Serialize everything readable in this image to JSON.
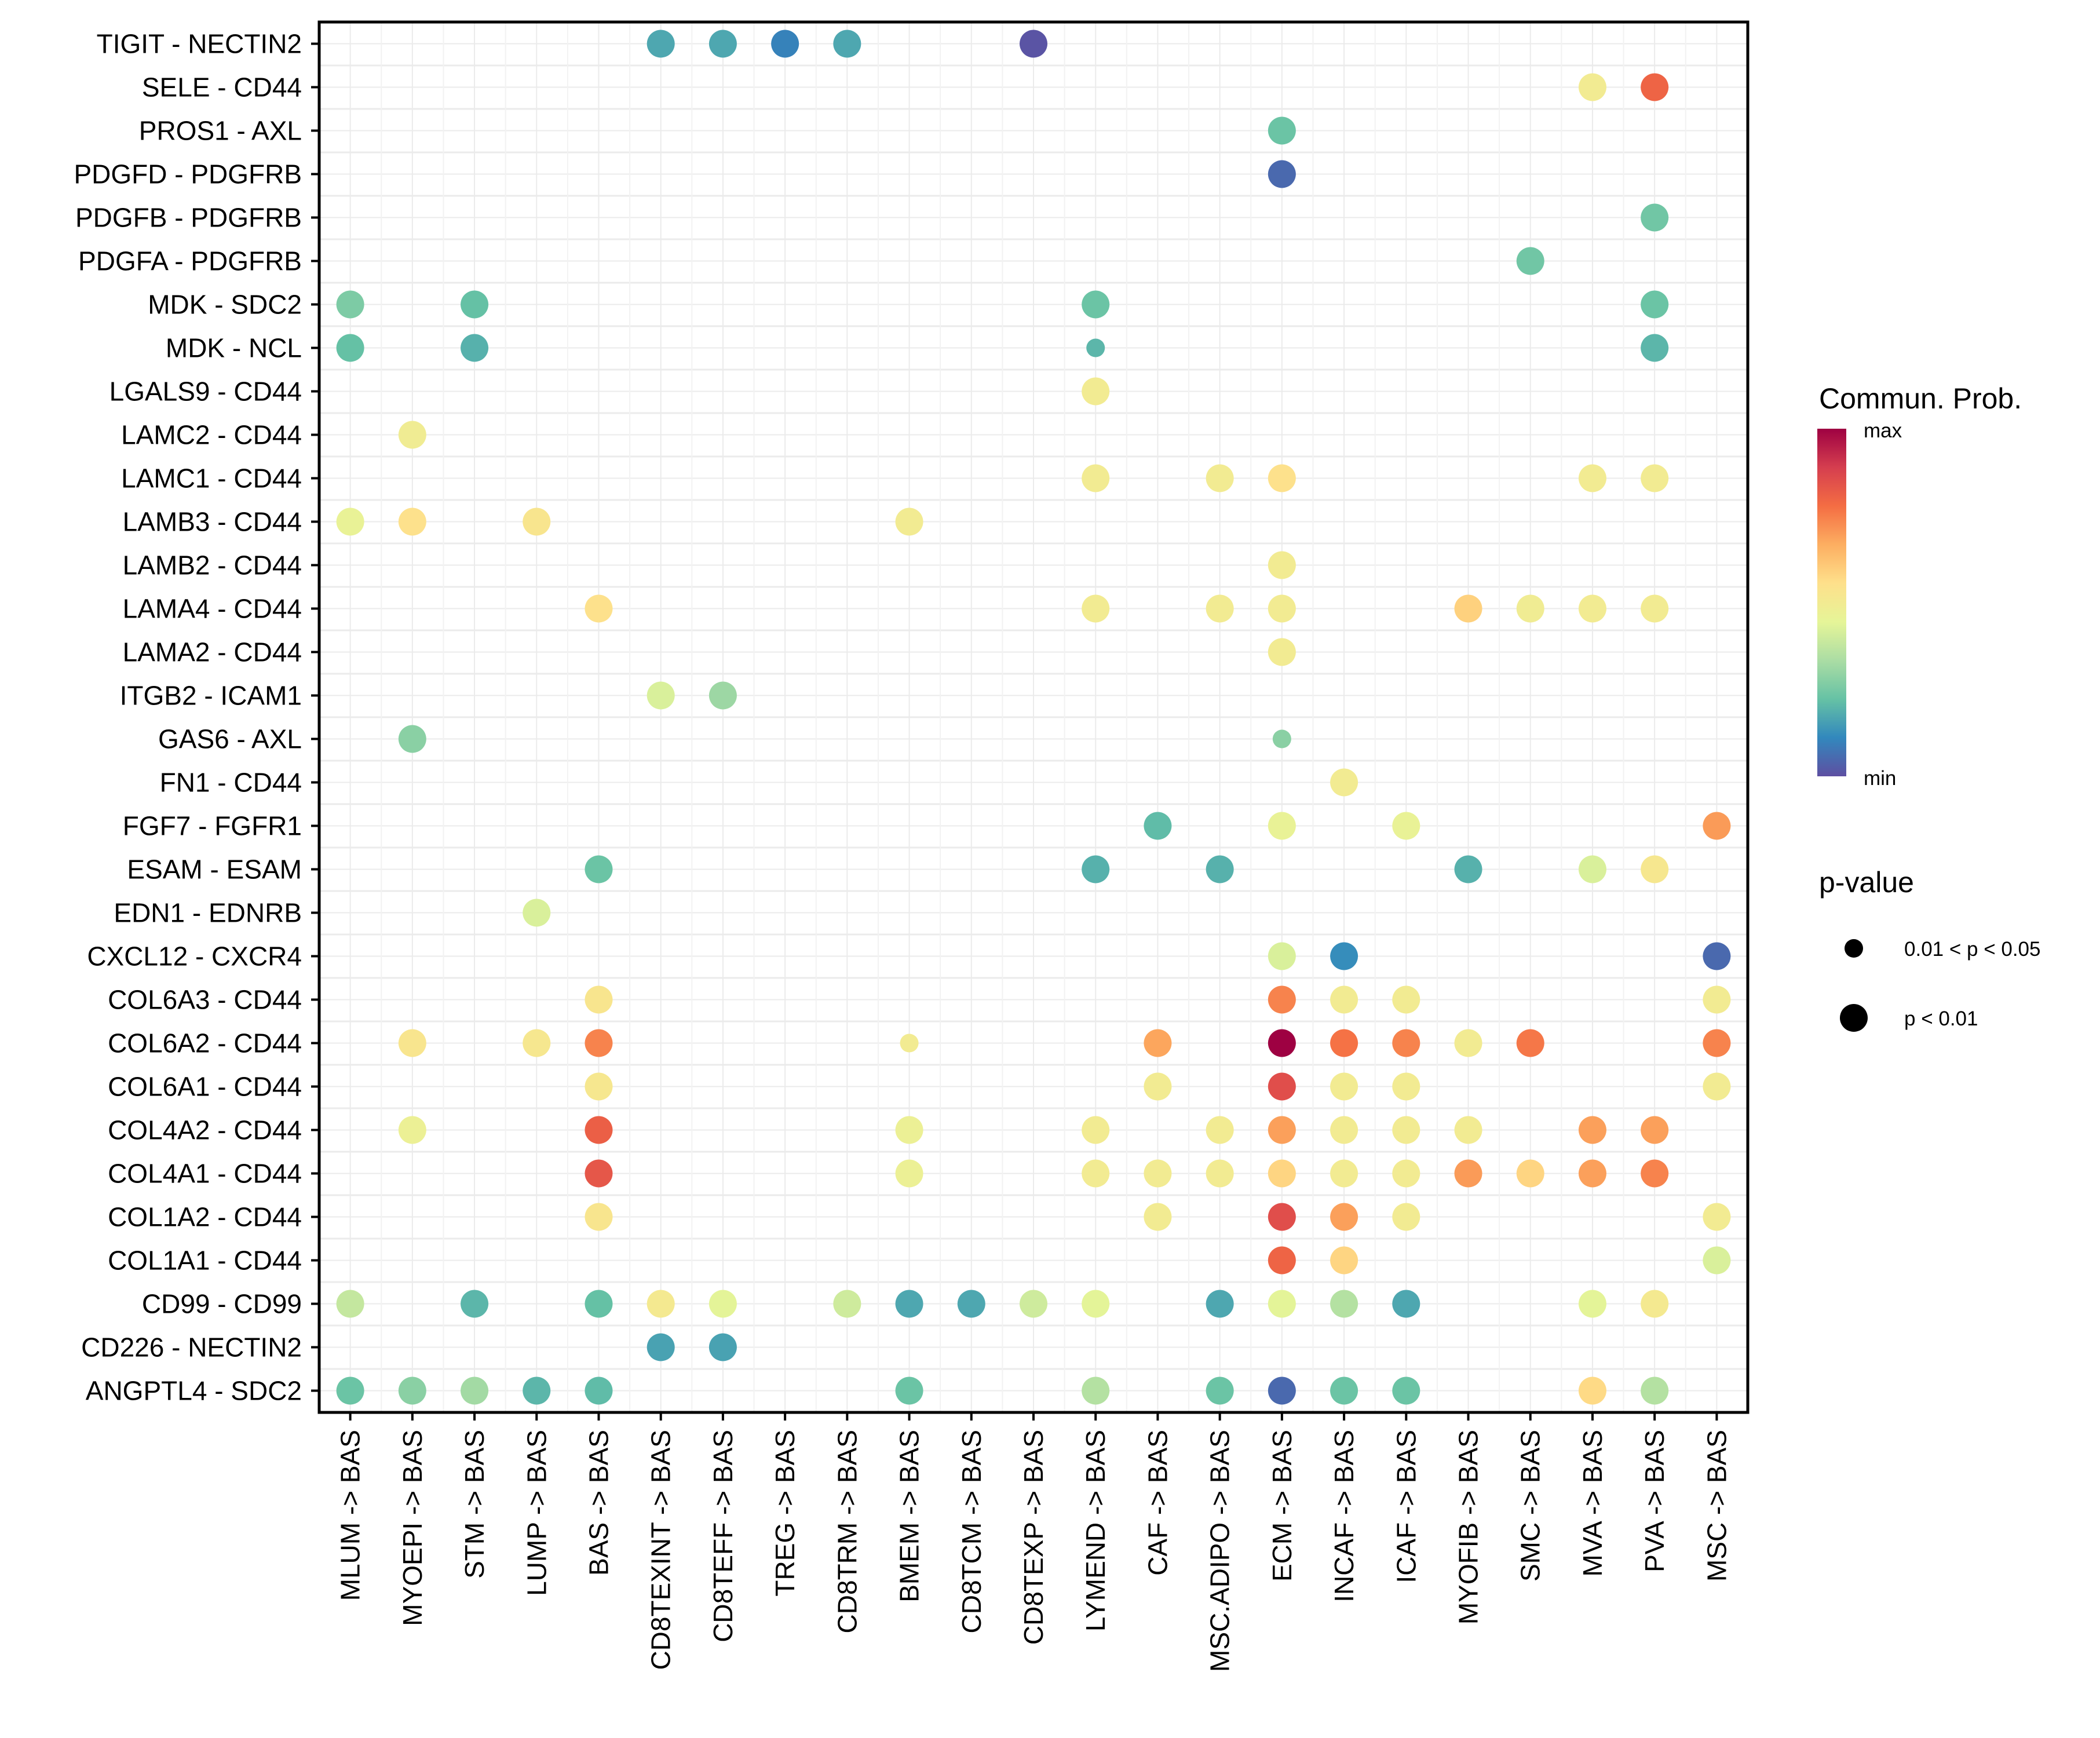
{
  "chart_data": {
    "type": "scatter",
    "subtype": "dot-matrix",
    "title": "",
    "xlabel": "",
    "ylabel": "",
    "grid": true,
    "x_categories": [
      "MLUM -> BAS",
      "MYOEPI -> BAS",
      "STM -> BAS",
      "LUMP -> BAS",
      "BAS -> BAS",
      "CD8TEXINT -> BAS",
      "CD8TEFF -> BAS",
      "TREG -> BAS",
      "CD8TRM -> BAS",
      "BMEM -> BAS",
      "CD8TCM -> BAS",
      "CD8TEXP -> BAS",
      "LYMEND -> BAS",
      "CAF -> BAS",
      "MSC.ADIPO -> BAS",
      "ECM -> BAS",
      "INCAF -> BAS",
      "ICAF -> BAS",
      "MYOFIB -> BAS",
      "SMC -> BAS",
      "MVA -> BAS",
      "PVA -> BAS",
      "MSC -> BAS"
    ],
    "y_categories_top_to_bottom": [
      "TIGIT - NECTIN2",
      "SELE - CD44",
      "PROS1 - AXL",
      "PDGFD - PDGFRB",
      "PDGFB - PDGFRB",
      "PDGFA - PDGFRB",
      "MDK - SDC2",
      "MDK - NCL",
      "LGALS9 - CD44",
      "LAMC2 - CD44",
      "LAMC1 - CD44",
      "LAMB3 - CD44",
      "LAMB2 - CD44",
      "LAMA4 - CD44",
      "LAMA2 - CD44",
      "ITGB2 - ICAM1",
      "GAS6 - AXL",
      "FN1 - CD44",
      "FGF7 - FGFR1",
      "ESAM - ESAM",
      "EDN1 - EDNRB",
      "CXCL12 - CXCR4",
      "COL6A3 - CD44",
      "COL6A2 - CD44",
      "COL6A1 - CD44",
      "COL4A2 - CD44",
      "COL4A1 - CD44",
      "COL1A2 - CD44",
      "COL1A1 - CD44",
      "CD99 - CD99",
      "CD226 - NECTIN2",
      "ANGPTL4 - SDC2"
    ],
    "value_note": "prob = communication probability normalized 0 (min) to 1 (max), estimated from Spectral color; p: 1 = p < 0.01 (large dot), 0 = 0.01 < p < 0.05 (small dot)",
    "points": [
      {
        "y": "TIGIT - NECTIN2",
        "x": "CD8TEXINT -> BAS",
        "prob": 0.17,
        "p": 1
      },
      {
        "y": "TIGIT - NECTIN2",
        "x": "CD8TEFF -> BAS",
        "prob": 0.17,
        "p": 1
      },
      {
        "y": "TIGIT - NECTIN2",
        "x": "TREG -> BAS",
        "prob": 0.1,
        "p": 1
      },
      {
        "y": "TIGIT - NECTIN2",
        "x": "CD8TRM -> BAS",
        "prob": 0.17,
        "p": 1
      },
      {
        "y": "TIGIT - NECTIN2",
        "x": "CD8TEXP -> BAS",
        "prob": 0.01,
        "p": 1
      },
      {
        "y": "SELE - CD44",
        "x": "MVA -> BAS",
        "prob": 0.5,
        "p": 1
      },
      {
        "y": "SELE - CD44",
        "x": "PVA -> BAS",
        "prob": 0.8,
        "p": 1
      },
      {
        "y": "PROS1 - AXL",
        "x": "ECM -> BAS",
        "prob": 0.23,
        "p": 1
      },
      {
        "y": "PDGFD - PDGFRB",
        "x": "ECM -> BAS",
        "prob": 0.05,
        "p": 1
      },
      {
        "y": "PDGFB - PDGFRB",
        "x": "PVA -> BAS",
        "prob": 0.24,
        "p": 1
      },
      {
        "y": "PDGFA - PDGFRB",
        "x": "SMC -> BAS",
        "prob": 0.24,
        "p": 1
      },
      {
        "y": "MDK - SDC2",
        "x": "MLUM -> BAS",
        "prob": 0.26,
        "p": 1
      },
      {
        "y": "MDK - SDC2",
        "x": "STM -> BAS",
        "prob": 0.22,
        "p": 1
      },
      {
        "y": "MDK - SDC2",
        "x": "LYMEND -> BAS",
        "prob": 0.23,
        "p": 1
      },
      {
        "y": "MDK - SDC2",
        "x": "PVA -> BAS",
        "prob": 0.23,
        "p": 1
      },
      {
        "y": "MDK - NCL",
        "x": "MLUM -> BAS",
        "prob": 0.22,
        "p": 1
      },
      {
        "y": "MDK - NCL",
        "x": "STM -> BAS",
        "prob": 0.19,
        "p": 1
      },
      {
        "y": "MDK - NCL",
        "x": "LYMEND -> BAS",
        "prob": 0.2,
        "p": 0
      },
      {
        "y": "MDK - NCL",
        "x": "PVA -> BAS",
        "prob": 0.2,
        "p": 1
      },
      {
        "y": "LGALS9 - CD44",
        "x": "LYMEND -> BAS",
        "prob": 0.5,
        "p": 1
      },
      {
        "y": "LAMC2 - CD44",
        "x": "MYOEPI -> BAS",
        "prob": 0.49,
        "p": 1
      },
      {
        "y": "LAMC1 - CD44",
        "x": "LYMEND -> BAS",
        "prob": 0.5,
        "p": 1
      },
      {
        "y": "LAMC1 - CD44",
        "x": "MSC.ADIPO -> BAS",
        "prob": 0.5,
        "p": 1
      },
      {
        "y": "LAMC1 - CD44",
        "x": "ECM -> BAS",
        "prob": 0.55,
        "p": 1
      },
      {
        "y": "LAMC1 - CD44",
        "x": "MVA -> BAS",
        "prob": 0.5,
        "p": 1
      },
      {
        "y": "LAMC1 - CD44",
        "x": "PVA -> BAS",
        "prob": 0.5,
        "p": 1
      },
      {
        "y": "LAMB3 - CD44",
        "x": "MLUM -> BAS",
        "prob": 0.46,
        "p": 1
      },
      {
        "y": "LAMB3 - CD44",
        "x": "MYOEPI -> BAS",
        "prob": 0.55,
        "p": 1
      },
      {
        "y": "LAMB3 - CD44",
        "x": "LUMP -> BAS",
        "prob": 0.53,
        "p": 1
      },
      {
        "y": "LAMB3 - CD44",
        "x": "BMEM -> BAS",
        "prob": 0.5,
        "p": 1
      },
      {
        "y": "LAMB2 - CD44",
        "x": "ECM -> BAS",
        "prob": 0.5,
        "p": 1
      },
      {
        "y": "LAMA4 - CD44",
        "x": "BAS -> BAS",
        "prob": 0.55,
        "p": 1
      },
      {
        "y": "LAMA4 - CD44",
        "x": "LYMEND -> BAS",
        "prob": 0.5,
        "p": 1
      },
      {
        "y": "LAMA4 - CD44",
        "x": "MSC.ADIPO -> BAS",
        "prob": 0.5,
        "p": 1
      },
      {
        "y": "LAMA4 - CD44",
        "x": "ECM -> BAS",
        "prob": 0.5,
        "p": 1
      },
      {
        "y": "LAMA4 - CD44",
        "x": "MYOFIB -> BAS",
        "prob": 0.59,
        "p": 1
      },
      {
        "y": "LAMA4 - CD44",
        "x": "SMC -> BAS",
        "prob": 0.49,
        "p": 1
      },
      {
        "y": "LAMA4 - CD44",
        "x": "MVA -> BAS",
        "prob": 0.5,
        "p": 1
      },
      {
        "y": "LAMA4 - CD44",
        "x": "PVA -> BAS",
        "prob": 0.5,
        "p": 1
      },
      {
        "y": "LAMA2 - CD44",
        "x": "ECM -> BAS",
        "prob": 0.5,
        "p": 1
      },
      {
        "y": "ITGB2 - ICAM1",
        "x": "CD8TEXINT -> BAS",
        "prob": 0.42,
        "p": 1
      },
      {
        "y": "ITGB2 - ICAM1",
        "x": "CD8TEFF -> BAS",
        "prob": 0.31,
        "p": 1
      },
      {
        "y": "GAS6 - AXL",
        "x": "MYOEPI -> BAS",
        "prob": 0.28,
        "p": 1
      },
      {
        "y": "GAS6 - AXL",
        "x": "ECM -> BAS",
        "prob": 0.28,
        "p": 0
      },
      {
        "y": "FN1 - CD44",
        "x": "INCAF -> BAS",
        "prob": 0.5,
        "p": 1
      },
      {
        "y": "FGF7 - FGFR1",
        "x": "CAF -> BAS",
        "prob": 0.21,
        "p": 1
      },
      {
        "y": "FGF7 - FGFR1",
        "x": "ECM -> BAS",
        "prob": 0.46,
        "p": 1
      },
      {
        "y": "FGF7 - FGFR1",
        "x": "ICAF -> BAS",
        "prob": 0.46,
        "p": 1
      },
      {
        "y": "FGF7 - FGFR1",
        "x": "MSC -> BAS",
        "prob": 0.7,
        "p": 1
      },
      {
        "y": "ESAM - ESAM",
        "x": "BAS -> BAS",
        "prob": 0.23,
        "p": 1
      },
      {
        "y": "ESAM - ESAM",
        "x": "LYMEND -> BAS",
        "prob": 0.19,
        "p": 1
      },
      {
        "y": "ESAM - ESAM",
        "x": "MSC.ADIPO -> BAS",
        "prob": 0.19,
        "p": 1
      },
      {
        "y": "ESAM - ESAM",
        "x": "MYOFIB -> BAS",
        "prob": 0.19,
        "p": 1
      },
      {
        "y": "ESAM - ESAM",
        "x": "MVA -> BAS",
        "prob": 0.42,
        "p": 1
      },
      {
        "y": "ESAM - ESAM",
        "x": "PVA -> BAS",
        "prob": 0.52,
        "p": 1
      },
      {
        "y": "EDN1 - EDNRB",
        "x": "LUMP -> BAS",
        "prob": 0.42,
        "p": 1
      },
      {
        "y": "CXCL12 - CXCR4",
        "x": "ECM -> BAS",
        "prob": 0.42,
        "p": 1
      },
      {
        "y": "CXCL12 - CXCR4",
        "x": "INCAF -> BAS",
        "prob": 0.12,
        "p": 1
      },
      {
        "y": "CXCL12 - CXCR4",
        "x": "MSC -> BAS",
        "prob": 0.05,
        "p": 1
      },
      {
        "y": "COL6A3 - CD44",
        "x": "BAS -> BAS",
        "prob": 0.53,
        "p": 1
      },
      {
        "y": "COL6A3 - CD44",
        "x": "ECM -> BAS",
        "prob": 0.74,
        "p": 1
      },
      {
        "y": "COL6A3 - CD44",
        "x": "INCAF -> BAS",
        "prob": 0.5,
        "p": 1
      },
      {
        "y": "COL6A3 - CD44",
        "x": "ICAF -> BAS",
        "prob": 0.5,
        "p": 1
      },
      {
        "y": "COL6A3 - CD44",
        "x": "MSC -> BAS",
        "prob": 0.5,
        "p": 1
      },
      {
        "y": "COL6A2 - CD44",
        "x": "MYOEPI -> BAS",
        "prob": 0.53,
        "p": 1
      },
      {
        "y": "COL6A2 - CD44",
        "x": "LUMP -> BAS",
        "prob": 0.52,
        "p": 1
      },
      {
        "y": "COL6A2 - CD44",
        "x": "BAS -> BAS",
        "prob": 0.74,
        "p": 1
      },
      {
        "y": "COL6A2 - CD44",
        "x": "BMEM -> BAS",
        "prob": 0.5,
        "p": 0
      },
      {
        "y": "COL6A2 - CD44",
        "x": "CAF -> BAS",
        "prob": 0.68,
        "p": 1
      },
      {
        "y": "COL6A2 - CD44",
        "x": "ECM -> BAS",
        "prob": 1.0,
        "p": 1
      },
      {
        "y": "COL6A2 - CD44",
        "x": "INCAF -> BAS",
        "prob": 0.77,
        "p": 1
      },
      {
        "y": "COL6A2 - CD44",
        "x": "ICAF -> BAS",
        "prob": 0.74,
        "p": 1
      },
      {
        "y": "COL6A2 - CD44",
        "x": "MYOFIB -> BAS",
        "prob": 0.5,
        "p": 1
      },
      {
        "y": "COL6A2 - CD44",
        "x": "SMC -> BAS",
        "prob": 0.76,
        "p": 1
      },
      {
        "y": "COL6A2 - CD44",
        "x": "MSC -> BAS",
        "prob": 0.74,
        "p": 1
      },
      {
        "y": "COL6A1 - CD44",
        "x": "BAS -> BAS",
        "prob": 0.52,
        "p": 1
      },
      {
        "y": "COL6A1 - CD44",
        "x": "CAF -> BAS",
        "prob": 0.5,
        "p": 1
      },
      {
        "y": "COL6A1 - CD44",
        "x": "ECM -> BAS",
        "prob": 0.85,
        "p": 1
      },
      {
        "y": "COL6A1 - CD44",
        "x": "INCAF -> BAS",
        "prob": 0.5,
        "p": 1
      },
      {
        "y": "COL6A1 - CD44",
        "x": "ICAF -> BAS",
        "prob": 0.5,
        "p": 1
      },
      {
        "y": "COL6A1 - CD44",
        "x": "MSC -> BAS",
        "prob": 0.5,
        "p": 1
      },
      {
        "y": "COL4A2 - CD44",
        "x": "MYOEPI -> BAS",
        "prob": 0.47,
        "p": 1
      },
      {
        "y": "COL4A2 - CD44",
        "x": "BAS -> BAS",
        "prob": 0.81,
        "p": 1
      },
      {
        "y": "COL4A2 - CD44",
        "x": "BMEM -> BAS",
        "prob": 0.47,
        "p": 1
      },
      {
        "y": "COL4A2 - CD44",
        "x": "LYMEND -> BAS",
        "prob": 0.5,
        "p": 1
      },
      {
        "y": "COL4A2 - CD44",
        "x": "MSC.ADIPO -> BAS",
        "prob": 0.5,
        "p": 1
      },
      {
        "y": "COL4A2 - CD44",
        "x": "ECM -> BAS",
        "prob": 0.69,
        "p": 1
      },
      {
        "y": "COL4A2 - CD44",
        "x": "INCAF -> BAS",
        "prob": 0.5,
        "p": 1
      },
      {
        "y": "COL4A2 - CD44",
        "x": "ICAF -> BAS",
        "prob": 0.5,
        "p": 1
      },
      {
        "y": "COL4A2 - CD44",
        "x": "MYOFIB -> BAS",
        "prob": 0.5,
        "p": 1
      },
      {
        "y": "COL4A2 - CD44",
        "x": "MVA -> BAS",
        "prob": 0.69,
        "p": 1
      },
      {
        "y": "COL4A2 - CD44",
        "x": "PVA -> BAS",
        "prob": 0.69,
        "p": 1
      },
      {
        "y": "COL4A1 - CD44",
        "x": "BAS -> BAS",
        "prob": 0.83,
        "p": 1
      },
      {
        "y": "COL4A1 - CD44",
        "x": "BMEM -> BAS",
        "prob": 0.47,
        "p": 1
      },
      {
        "y": "COL4A1 - CD44",
        "x": "LYMEND -> BAS",
        "prob": 0.5,
        "p": 1
      },
      {
        "y": "COL4A1 - CD44",
        "x": "CAF -> BAS",
        "prob": 0.5,
        "p": 1
      },
      {
        "y": "COL4A1 - CD44",
        "x": "MSC.ADIPO -> BAS",
        "prob": 0.5,
        "p": 1
      },
      {
        "y": "COL4A1 - CD44",
        "x": "ECM -> BAS",
        "prob": 0.58,
        "p": 1
      },
      {
        "y": "COL4A1 - CD44",
        "x": "INCAF -> BAS",
        "prob": 0.5,
        "p": 1
      },
      {
        "y": "COL4A1 - CD44",
        "x": "ICAF -> BAS",
        "prob": 0.5,
        "p": 1
      },
      {
        "y": "COL4A1 - CD44",
        "x": "MYOFIB -> BAS",
        "prob": 0.7,
        "p": 1
      },
      {
        "y": "COL4A1 - CD44",
        "x": "SMC -> BAS",
        "prob": 0.58,
        "p": 1
      },
      {
        "y": "COL4A1 - CD44",
        "x": "MVA -> BAS",
        "prob": 0.69,
        "p": 1
      },
      {
        "y": "COL4A1 - CD44",
        "x": "PVA -> BAS",
        "prob": 0.74,
        "p": 1
      },
      {
        "y": "COL1A2 - CD44",
        "x": "BAS -> BAS",
        "prob": 0.53,
        "p": 1
      },
      {
        "y": "COL1A2 - CD44",
        "x": "CAF -> BAS",
        "prob": 0.5,
        "p": 1
      },
      {
        "y": "COL1A2 - CD44",
        "x": "ECM -> BAS",
        "prob": 0.85,
        "p": 1
      },
      {
        "y": "COL1A2 - CD44",
        "x": "INCAF -> BAS",
        "prob": 0.69,
        "p": 1
      },
      {
        "y": "COL1A2 - CD44",
        "x": "ICAF -> BAS",
        "prob": 0.5,
        "p": 1
      },
      {
        "y": "COL1A2 - CD44",
        "x": "MSC -> BAS",
        "prob": 0.5,
        "p": 1
      },
      {
        "y": "COL1A1 - CD44",
        "x": "ECM -> BAS",
        "prob": 0.8,
        "p": 1
      },
      {
        "y": "COL1A1 - CD44",
        "x": "INCAF -> BAS",
        "prob": 0.58,
        "p": 1
      },
      {
        "y": "COL1A1 - CD44",
        "x": "MSC -> BAS",
        "prob": 0.42,
        "p": 1
      },
      {
        "y": "CD99 - CD99",
        "x": "MLUM -> BAS",
        "prob": 0.38,
        "p": 1
      },
      {
        "y": "CD99 - CD99",
        "x": "STM -> BAS",
        "prob": 0.2,
        "p": 1
      },
      {
        "y": "CD99 - CD99",
        "x": "BAS -> BAS",
        "prob": 0.22,
        "p": 1
      },
      {
        "y": "CD99 - CD99",
        "x": "CD8TEXINT -> BAS",
        "prob": 0.51,
        "p": 1
      },
      {
        "y": "CD99 - CD99",
        "x": "CD8TEFF -> BAS",
        "prob": 0.44,
        "p": 1
      },
      {
        "y": "CD99 - CD99",
        "x": "CD8TRM -> BAS",
        "prob": 0.4,
        "p": 1
      },
      {
        "y": "CD99 - CD99",
        "x": "BMEM -> BAS",
        "prob": 0.17,
        "p": 1
      },
      {
        "y": "CD99 - CD99",
        "x": "CD8TCM -> BAS",
        "prob": 0.17,
        "p": 1
      },
      {
        "y": "CD99 - CD99",
        "x": "CD8TEXP -> BAS",
        "prob": 0.4,
        "p": 1
      },
      {
        "y": "CD99 - CD99",
        "x": "LYMEND -> BAS",
        "prob": 0.44,
        "p": 1
      },
      {
        "y": "CD99 - CD99",
        "x": "MSC.ADIPO -> BAS",
        "prob": 0.17,
        "p": 1
      },
      {
        "y": "CD99 - CD99",
        "x": "ECM -> BAS",
        "prob": 0.44,
        "p": 1
      },
      {
        "y": "CD99 - CD99",
        "x": "INCAF -> BAS",
        "prob": 0.35,
        "p": 1
      },
      {
        "y": "CD99 - CD99",
        "x": "ICAF -> BAS",
        "prob": 0.17,
        "p": 1
      },
      {
        "y": "CD99 - CD99",
        "x": "MVA -> BAS",
        "prob": 0.44,
        "p": 1
      },
      {
        "y": "CD99 - CD99",
        "x": "PVA -> BAS",
        "prob": 0.51,
        "p": 1
      },
      {
        "y": "CD226 - NECTIN2",
        "x": "CD8TEXINT -> BAS",
        "prob": 0.16,
        "p": 1
      },
      {
        "y": "CD226 - NECTIN2",
        "x": "CD8TEFF -> BAS",
        "prob": 0.16,
        "p": 1
      },
      {
        "y": "ANGPTL4 - SDC2",
        "x": "MLUM -> BAS",
        "prob": 0.23,
        "p": 1
      },
      {
        "y": "ANGPTL4 - SDC2",
        "x": "MYOEPI -> BAS",
        "prob": 0.28,
        "p": 1
      },
      {
        "y": "ANGPTL4 - SDC2",
        "x": "STM -> BAS",
        "prob": 0.32,
        "p": 1
      },
      {
        "y": "ANGPTL4 - SDC2",
        "x": "LUMP -> BAS",
        "prob": 0.2,
        "p": 1
      },
      {
        "y": "ANGPTL4 - SDC2",
        "x": "BAS -> BAS",
        "prob": 0.21,
        "p": 1
      },
      {
        "y": "ANGPTL4 - SDC2",
        "x": "BMEM -> BAS",
        "prob": 0.23,
        "p": 1
      },
      {
        "y": "ANGPTL4 - SDC2",
        "x": "LYMEND -> BAS",
        "prob": 0.35,
        "p": 1
      },
      {
        "y": "ANGPTL4 - SDC2",
        "x": "MSC.ADIPO -> BAS",
        "prob": 0.23,
        "p": 1
      },
      {
        "y": "ANGPTL4 - SDC2",
        "x": "ECM -> BAS",
        "prob": 0.05,
        "p": 1
      },
      {
        "y": "ANGPTL4 - SDC2",
        "x": "INCAF -> BAS",
        "prob": 0.23,
        "p": 1
      },
      {
        "y": "ANGPTL4 - SDC2",
        "x": "ICAF -> BAS",
        "prob": 0.23,
        "p": 1
      },
      {
        "y": "ANGPTL4 - SDC2",
        "x": "MVA -> BAS",
        "prob": 0.57,
        "p": 1
      },
      {
        "y": "ANGPTL4 - SDC2",
        "x": "PVA -> BAS",
        "prob": 0.35,
        "p": 1
      }
    ],
    "color_scale": {
      "name": "Spectral (reversed)",
      "stops": [
        "#5E4FA2",
        "#3288BD",
        "#66C2A5",
        "#ABDDA4",
        "#E6F598",
        "#FEE08B",
        "#FDAE61",
        "#F46D43",
        "#D53E4F",
        "#9E0142"
      ]
    },
    "legend": {
      "color_title": "Commun. Prob.",
      "color_max_label": "max",
      "color_min_label": "min",
      "size_title": "p-value",
      "size_items": [
        {
          "label": "0.01 < p < 0.05",
          "p": 0
        },
        {
          "label": "p < 0.01",
          "p": 1
        }
      ],
      "placement": "right"
    }
  }
}
